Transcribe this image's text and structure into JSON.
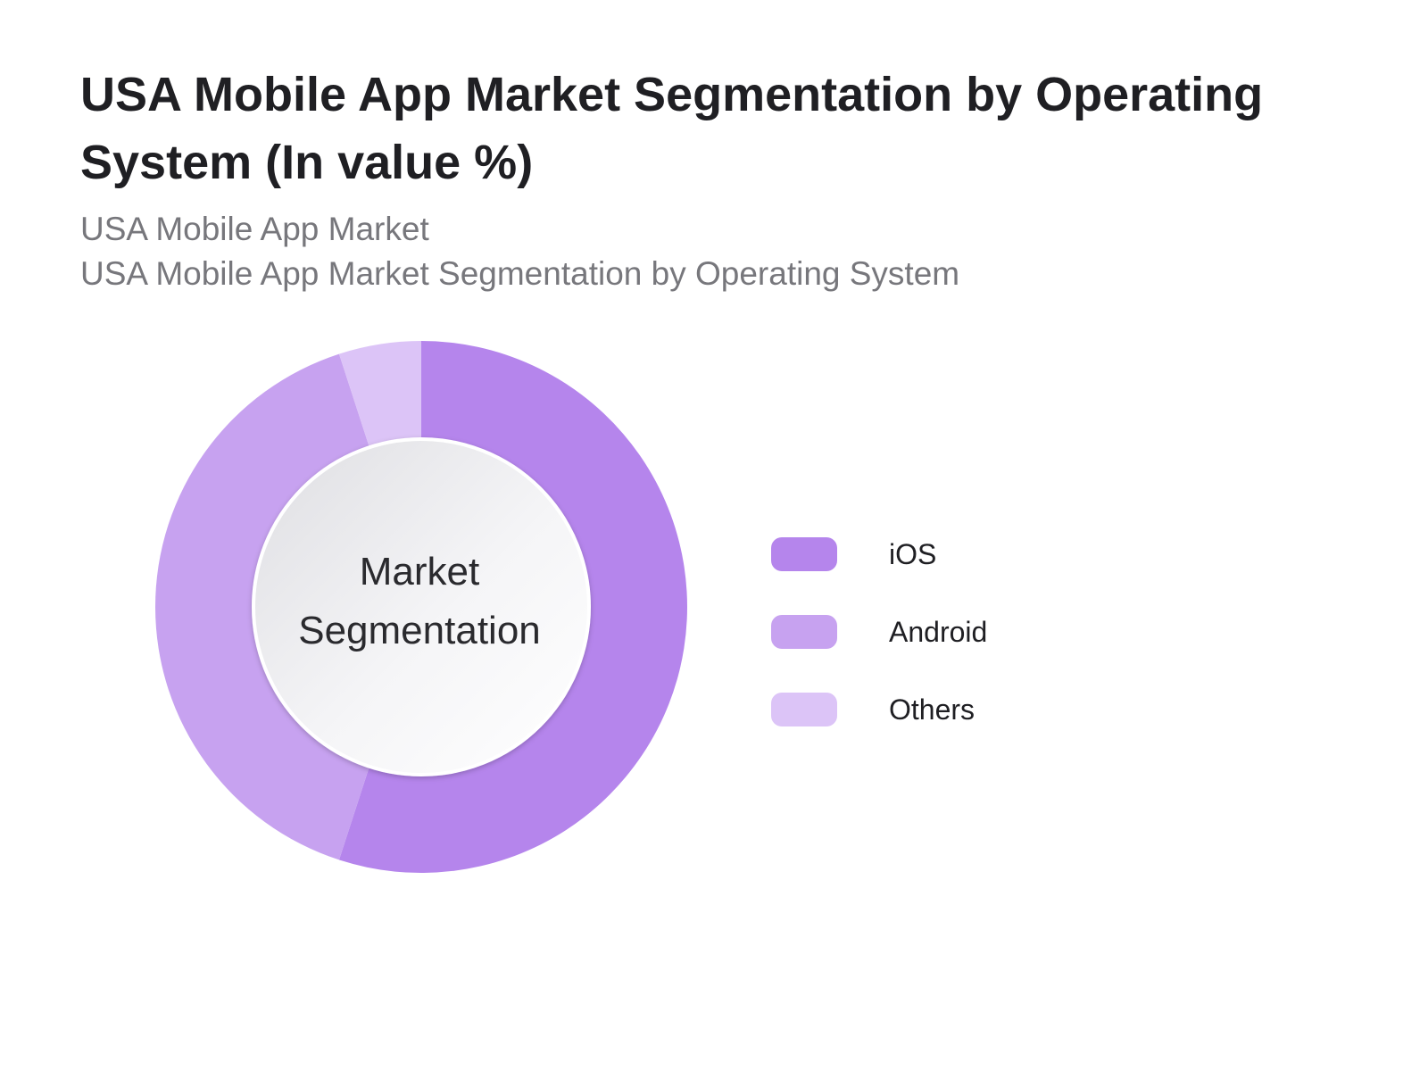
{
  "chart_data": {
    "type": "pie",
    "title": "USA Mobile App Market Segmentation by Operating System (In value %)",
    "subtitles": [
      "USA Mobile App Market",
      "USA Mobile App Market Segmentation by Operating System"
    ],
    "center_label": [
      "Market",
      "Segmentation"
    ],
    "categories": [
      "iOS",
      "Android",
      "Others"
    ],
    "values": [
      55,
      40,
      5
    ],
    "colors": [
      "#b585ec",
      "#c7a2f0",
      "#dcc4f7"
    ],
    "donut": true,
    "legend_position": "right"
  }
}
